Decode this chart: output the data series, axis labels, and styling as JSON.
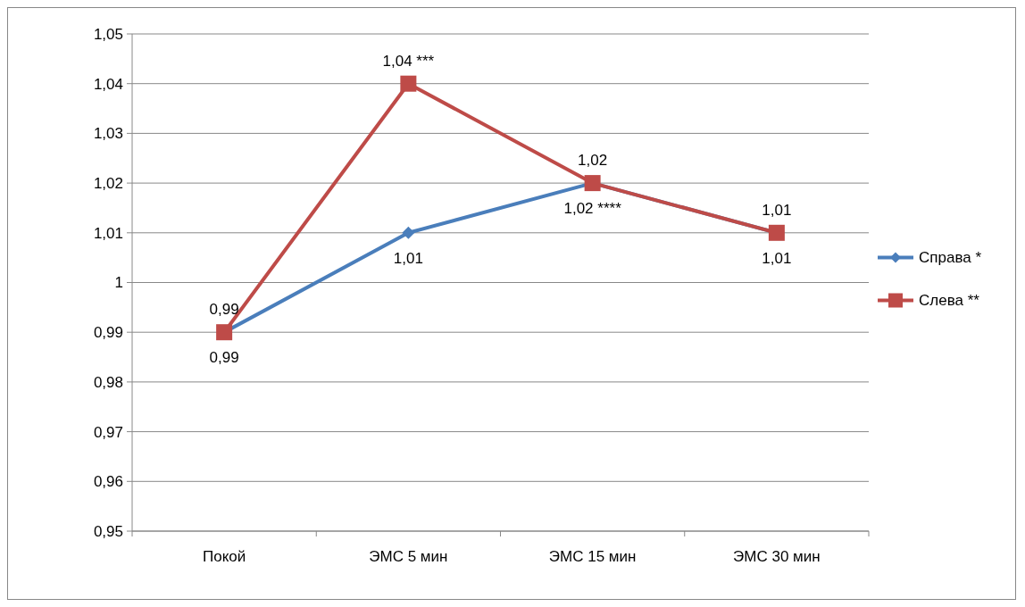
{
  "chart_data": {
    "type": "line",
    "categories": [
      "Покой",
      "ЭМС 5 мин",
      "ЭМС 15 мин",
      "ЭМС 30 мин"
    ],
    "series": [
      {
        "name": "Справа *",
        "color": "#4a7ebb",
        "marker": "diamond",
        "values": [
          0.99,
          1.01,
          1.02,
          1.01
        ],
        "value_labels": [
          "0,99",
          "1,01",
          "1,02 ****",
          "1,01"
        ]
      },
      {
        "name": "Слева **",
        "color": "#be4b48",
        "marker": "square",
        "values": [
          0.99,
          1.04,
          1.02,
          1.01
        ],
        "value_labels": [
          "0,99",
          "1,04 ***",
          "1,02",
          "1,01"
        ]
      }
    ],
    "ylim": [
      0.95,
      1.05
    ],
    "yticks": [
      {
        "value": 0.95,
        "label": "0,95"
      },
      {
        "value": 0.96,
        "label": "0,96"
      },
      {
        "value": 0.97,
        "label": "0,97"
      },
      {
        "value": 0.98,
        "label": "0,98"
      },
      {
        "value": 0.99,
        "label": "0,99"
      },
      1,
      {
        "value": 1.01,
        "label": "1,01"
      },
      {
        "value": 1.02,
        "label": "1,02"
      },
      {
        "value": 1.03,
        "label": "1,03"
      },
      {
        "value": 1.04,
        "label": "1,04"
      },
      {
        "value": 1.05,
        "label": "1,05"
      }
    ],
    "grid": "y",
    "legend": "right"
  }
}
